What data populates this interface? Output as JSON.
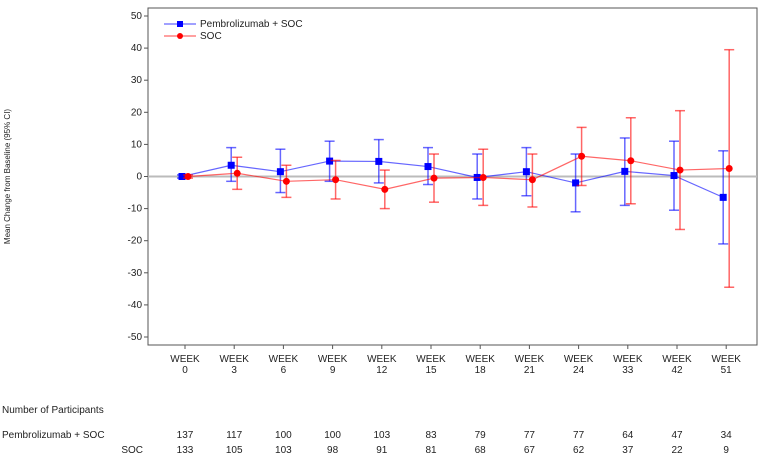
{
  "chart_data": {
    "type": "line",
    "title": "",
    "xlabel": "",
    "ylabel": "Mean Change from Baseline (95% CI)",
    "ylim": [
      -50,
      50
    ],
    "yticks": [
      -50,
      -40,
      -30,
      -20,
      -10,
      0,
      10,
      20,
      30,
      40,
      50
    ],
    "categories": [
      {
        "top": "WEEK",
        "bottom": "0"
      },
      {
        "top": "WEEK",
        "bottom": "3"
      },
      {
        "top": "WEEK",
        "bottom": "6"
      },
      {
        "top": "WEEK",
        "bottom": "9"
      },
      {
        "top": "WEEK",
        "bottom": "12"
      },
      {
        "top": "WEEK",
        "bottom": "15"
      },
      {
        "top": "WEEK",
        "bottom": "18"
      },
      {
        "top": "WEEK",
        "bottom": "21"
      },
      {
        "top": "WEEK",
        "bottom": "24"
      },
      {
        "top": "WEEK",
        "bottom": "33"
      },
      {
        "top": "WEEK",
        "bottom": "42"
      },
      {
        "top": "WEEK",
        "bottom": "51"
      }
    ],
    "reference_line": 0,
    "legend_position": "top-left",
    "series": [
      {
        "name": "Pembrolizumab + SOC",
        "color": "#0000ff",
        "marker": "square",
        "values": [
          0,
          3.5,
          1.5,
          4.8,
          4.7,
          3.1,
          -0.3,
          1.5,
          -2.0,
          1.6,
          0.3,
          -6.5
        ],
        "ci_upper": [
          0.5,
          9.0,
          8.5,
          11.0,
          11.5,
          9.0,
          7.0,
          9.0,
          7.0,
          12.0,
          11.0,
          8.0
        ],
        "ci_lower": [
          -0.5,
          -1.5,
          -5.0,
          -1.5,
          -2.0,
          -2.5,
          -7.0,
          -6.0,
          -11.0,
          -9.0,
          -10.5,
          -21.0
        ]
      },
      {
        "name": "SOC",
        "color": "#ff0000",
        "marker": "circle",
        "values": [
          0,
          1.0,
          -1.5,
          -1.0,
          -4.0,
          -0.5,
          -0.3,
          -1.0,
          6.3,
          4.9,
          2.0,
          2.5
        ],
        "ci_upper": [
          0.5,
          6.0,
          3.5,
          5.0,
          2.0,
          7.0,
          8.5,
          7.0,
          15.3,
          18.3,
          20.5,
          39.5
        ],
        "ci_lower": [
          -0.5,
          -4.0,
          -6.5,
          -7.0,
          -10.0,
          -8.0,
          -9.0,
          -9.5,
          -2.8,
          -8.5,
          -16.5,
          -34.5
        ]
      }
    ]
  },
  "participants": {
    "heading": "Number of Participants",
    "rows": [
      {
        "label": "Pembrolizumab + SOC",
        "counts": [
          "137",
          "117",
          "100",
          "100",
          "103",
          "83",
          "79",
          "77",
          "77",
          "64",
          "47",
          "34"
        ]
      },
      {
        "label": "SOC",
        "counts": [
          "133",
          "105",
          "103",
          "98",
          "91",
          "81",
          "68",
          "67",
          "62",
          "37",
          "22",
          "9"
        ]
      }
    ]
  }
}
